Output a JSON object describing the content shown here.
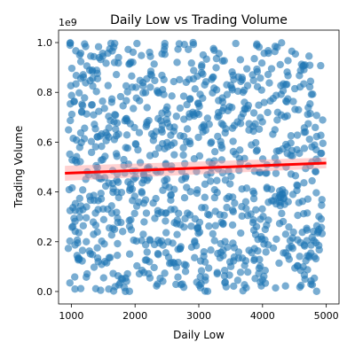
{
  "chart_data": {
    "type": "scatter",
    "title": "Daily Low vs Trading Volume",
    "xlabel": "Daily Low",
    "ylabel": "Trading Volume",
    "y_multiplier_label": "1e9",
    "xlim": [
      800,
      5200
    ],
    "ylim": [
      -0.05,
      1.05
    ],
    "xticks": [
      1000,
      2000,
      3000,
      4000,
      5000
    ],
    "yticks": [
      0.0,
      0.2,
      0.4,
      0.6,
      0.8,
      1.0
    ],
    "xtick_labels": [
      "1000",
      "2000",
      "3000",
      "4000",
      "5000"
    ],
    "ytick_labels": [
      "0.0",
      "0.2",
      "0.4",
      "0.6",
      "0.8",
      "1.0"
    ],
    "grid": false,
    "legend": "none",
    "colors": {
      "points": "#1f77b4",
      "regression_line": "#ff0000",
      "confidence_band": "#ff9999"
    },
    "sample_points": {
      "count": 1000,
      "x_range": [
        950,
        4950
      ],
      "y_range": [
        0.0,
        1.0
      ],
      "seed": 7
    },
    "regression": {
      "x": [
        900,
        5000
      ],
      "y": [
        0.475,
        0.516
      ],
      "ci_lower": [
        0.445,
        0.495
      ],
      "ci_upper": [
        0.505,
        0.538
      ]
    }
  }
}
